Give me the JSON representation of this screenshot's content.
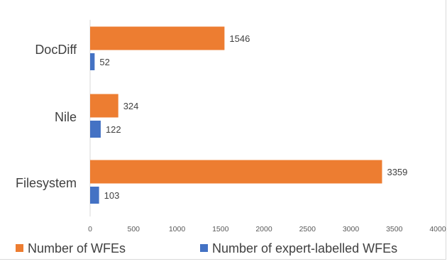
{
  "chart_data": {
    "type": "bar",
    "orientation": "horizontal",
    "title": "",
    "xlabel": "",
    "ylabel": "",
    "categories": [
      "DocDiff",
      "Nile",
      "Filesystem"
    ],
    "series": [
      {
        "name": "Number of WFEs",
        "color": "#ED7D31",
        "values": [
          1546,
          324,
          3359
        ]
      },
      {
        "name": "Number of expert-labelled WFEs",
        "color": "#4472C4",
        "values": [
          52,
          122,
          103
        ]
      }
    ],
    "xlim": [
      0,
      4000
    ],
    "xticks": [
      "0",
      "500",
      "1000",
      "1500",
      "2000",
      "2500",
      "3000",
      "3500",
      "4000"
    ],
    "grid": false,
    "legend_position": "bottom"
  }
}
